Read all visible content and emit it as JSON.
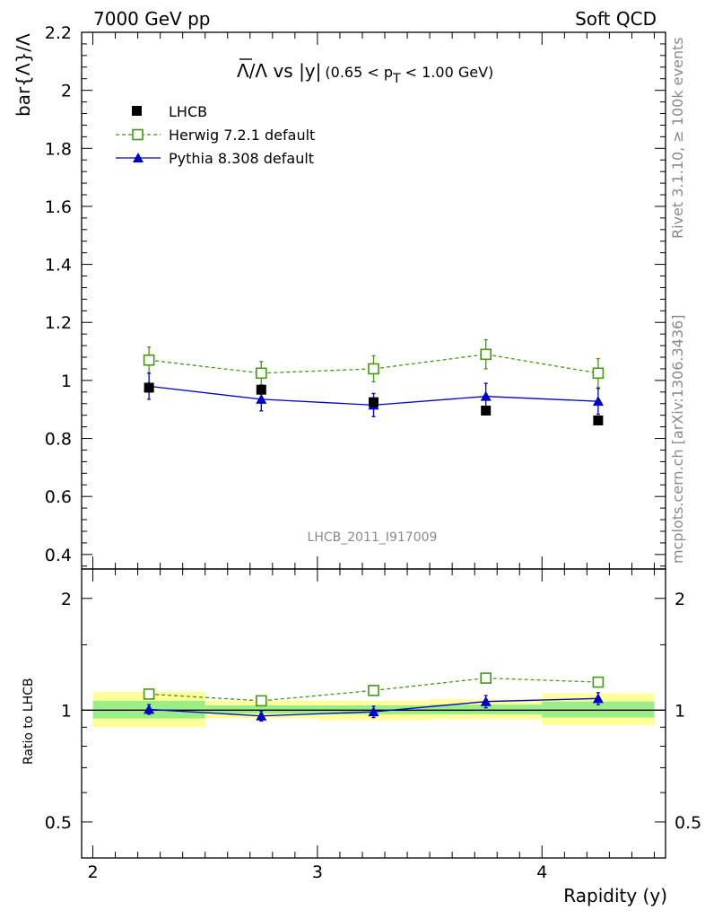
{
  "header": {
    "left": "7000 GeV pp",
    "right": "Soft QCD"
  },
  "side": {
    "rivet": "Rivet 3.1.10, ≥ 100k events",
    "source": "mcplots.cern.ch [arXiv:1306.3436]"
  },
  "watermark": "LHCB_2011_I917009",
  "chart_data": [
    {
      "type": "scatter",
      "title_main": "Λ/Λ vs |y|",
      "title_sub": "(0.65 < p",
      "title_sub_index": "T",
      "title_sub_end": " < 1.00 GeV)",
      "ylabel": "bar{Λ}/Λ",
      "ylim": [
        0.35,
        2.2
      ],
      "yticks": [
        0.4,
        0.6,
        0.8,
        1,
        1.2,
        1.4,
        1.6,
        1.8,
        2,
        2.2
      ],
      "ytick_labels": [
        "0.4",
        "0.6",
        "0.8",
        "1",
        "1.2",
        "1.4",
        "1.6",
        "1.8",
        "2",
        "2.2"
      ],
      "xlim": [
        1.95,
        4.55
      ],
      "legend_position": "top-left",
      "series": [
        {
          "name": "LHCB",
          "color": "#000000",
          "marker": "filled-square",
          "x": [
            2.25,
            2.75,
            3.25,
            3.75,
            4.25
          ],
          "y": [
            0.975,
            0.968,
            0.925,
            0.896,
            0.862
          ],
          "yerr": [
            0,
            0,
            0,
            0,
            0
          ]
        },
        {
          "name": "Herwig 7.2.1 default",
          "color": "#449911",
          "marker": "open-square",
          "line": "dashed",
          "x": [
            2.25,
            2.75,
            3.25,
            3.75,
            4.25
          ],
          "y": [
            1.07,
            1.025,
            1.04,
            1.09,
            1.025
          ],
          "yerr": [
            0.045,
            0.04,
            0.045,
            0.05,
            0.05
          ]
        },
        {
          "name": "Pythia 8.308 default",
          "color": "#0000cc",
          "marker": "filled-triangle",
          "line": "solid",
          "x": [
            2.25,
            2.75,
            3.25,
            3.75,
            4.25
          ],
          "y": [
            0.98,
            0.935,
            0.915,
            0.945,
            0.928
          ],
          "yerr": [
            0.045,
            0.04,
            0.04,
            0.045,
            0.045
          ]
        }
      ]
    },
    {
      "type": "scatter",
      "ylabel": "Ratio to LHCB",
      "xlabel": "Rapidity (y)",
      "ylog": true,
      "ylim": [
        0.4,
        2.4
      ],
      "yticks": [
        0.5,
        1,
        2
      ],
      "ytick_labels": [
        "0.5",
        "1",
        "2"
      ],
      "xlim": [
        1.95,
        4.55
      ],
      "xticks": [
        2,
        3,
        4
      ],
      "xtick_labels": [
        "2",
        "3",
        "4"
      ],
      "reference_line": 1,
      "uncertainty_bands": [
        {
          "x0": 2.0,
          "x1": 2.5,
          "yellow": [
            0.9,
            1.12
          ],
          "green": [
            0.95,
            1.06
          ]
        },
        {
          "x0": 2.5,
          "x1": 3.0,
          "yellow": [
            0.95,
            1.06
          ],
          "green": [
            0.98,
            1.03
          ]
        },
        {
          "x0": 3.0,
          "x1": 3.5,
          "yellow": [
            0.94,
            1.06
          ],
          "green": [
            0.975,
            1.03
          ]
        },
        {
          "x0": 3.5,
          "x1": 4.0,
          "yellow": [
            0.945,
            1.07
          ],
          "green": [
            0.975,
            1.035
          ]
        },
        {
          "x0": 4.0,
          "x1": 4.5,
          "yellow": [
            0.91,
            1.11
          ],
          "green": [
            0.955,
            1.055
          ]
        }
      ],
      "series": [
        {
          "name": "Herwig 7.2.1 default",
          "color": "#449911",
          "marker": "open-square",
          "line": "dashed",
          "x": [
            2.25,
            2.75,
            3.25,
            3.75,
            4.25
          ],
          "y": [
            1.105,
            1.06,
            1.13,
            1.22,
            1.19
          ],
          "yerr": [
            0.025,
            0.025,
            0.025,
            0.03,
            0.03
          ]
        },
        {
          "name": "Pythia 8.308 default",
          "color": "#0000cc",
          "marker": "filled-triangle",
          "line": "solid",
          "x": [
            2.25,
            2.75,
            3.25,
            3.75,
            4.25
          ],
          "y": [
            1.005,
            0.965,
            0.99,
            1.055,
            1.075
          ],
          "yerr": [
            0.03,
            0.03,
            0.035,
            0.04,
            0.04
          ]
        }
      ]
    }
  ]
}
